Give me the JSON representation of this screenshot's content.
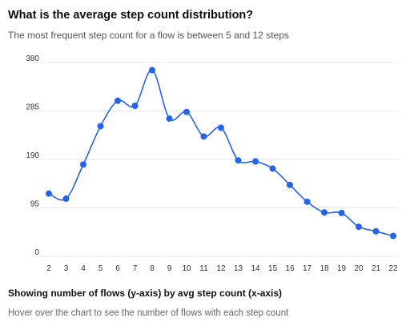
{
  "header": {
    "title": "What is the average step count distribution?",
    "subtitle": "The most frequent step count for a flow is between 5 and 12 steps"
  },
  "footer": {
    "caption": "Showing number of flows (y-axis) by avg step count (x-axis)",
    "hint": "Hover over the chart to see the number of flows with each step count"
  },
  "colors": {
    "line": "#2563eb",
    "grid": "#e5e7eb",
    "tick_text": "#333333"
  },
  "chart_data": {
    "type": "line",
    "x": [
      2,
      3,
      4,
      5,
      6,
      7,
      8,
      9,
      10,
      11,
      12,
      13,
      14,
      15,
      16,
      17,
      18,
      19,
      20,
      21,
      22
    ],
    "series": [
      {
        "values": [
          123,
          113,
          180,
          255,
          305,
          295,
          365,
          270,
          283,
          235,
          252,
          188,
          186,
          172,
          140,
          107,
          86,
          85,
          58,
          49,
          40
        ]
      }
    ],
    "yticks": [
      0,
      95,
      190,
      285,
      380
    ],
    "ylim": [
      0,
      380
    ],
    "xlabel": "",
    "ylabel": "",
    "grid": true,
    "smooth": true,
    "markers": true
  }
}
